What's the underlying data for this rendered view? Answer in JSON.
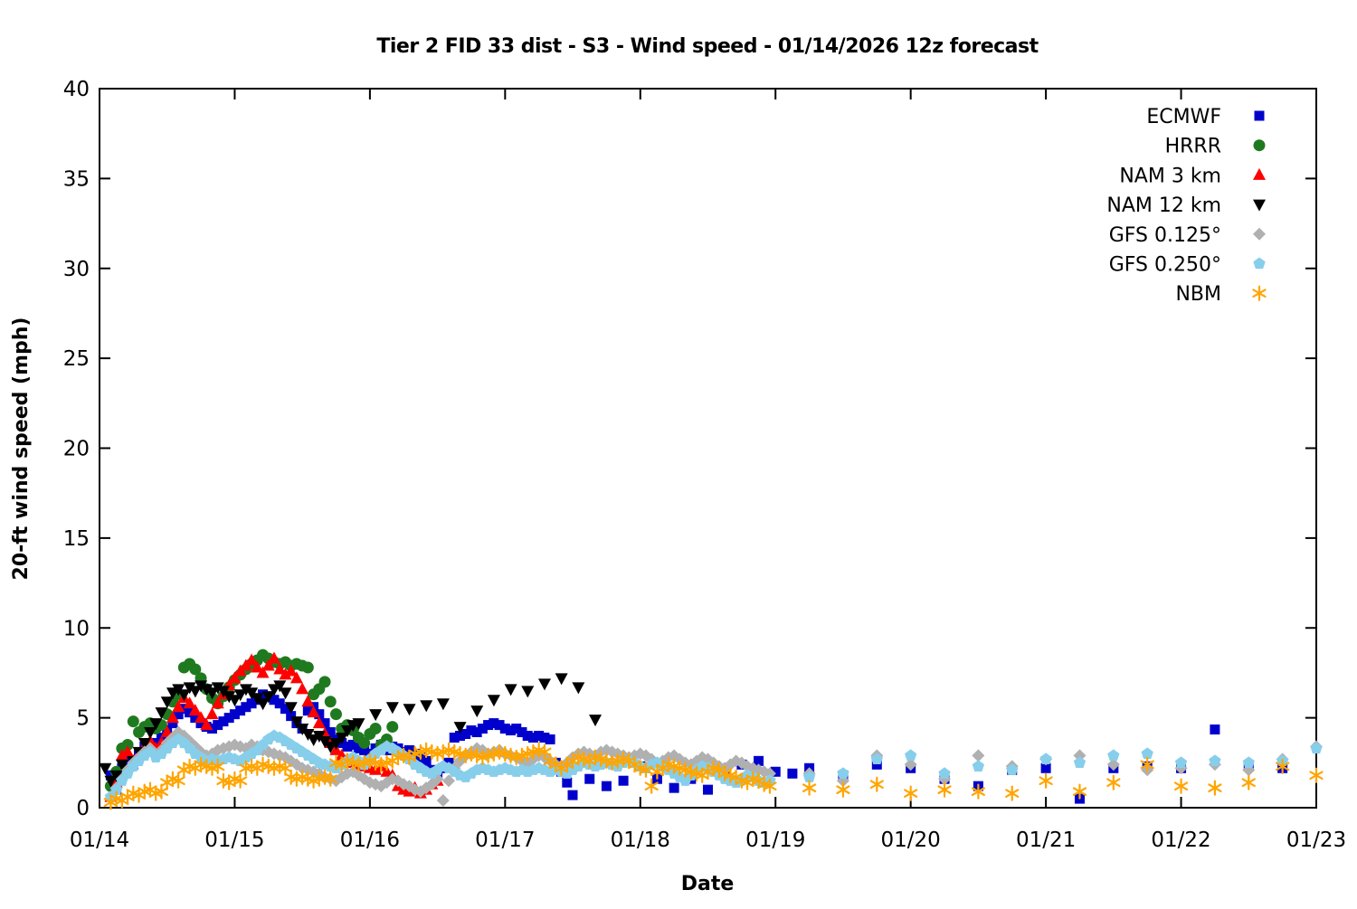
{
  "chart_data": {
    "type": "scatter",
    "title": "Tier 2 FID 33 dist - S3 - Wind speed - 01/14/2026 12z forecast",
    "xlabel": "Date",
    "ylabel": "20-ft wind speed (mph)",
    "x_unit": "days since 01/14 00:00",
    "xlim": [
      0,
      9
    ],
    "ylim": [
      0,
      40
    ],
    "grid": false,
    "legend_position": "top-right-inside",
    "x_ticks": [
      {
        "t": 0,
        "label": "01/14"
      },
      {
        "t": 1,
        "label": "01/15"
      },
      {
        "t": 2,
        "label": "01/16"
      },
      {
        "t": 3,
        "label": "01/17"
      },
      {
        "t": 4,
        "label": "01/18"
      },
      {
        "t": 5,
        "label": "01/19"
      },
      {
        "t": 6,
        "label": "01/20"
      },
      {
        "t": 7,
        "label": "01/21"
      },
      {
        "t": 8,
        "label": "01/22"
      },
      {
        "t": 9,
        "label": "01/23"
      }
    ],
    "y_ticks": [
      0,
      5,
      10,
      15,
      20,
      25,
      30,
      35,
      40
    ],
    "series": [
      {
        "name": "ECMWF",
        "marker": "square",
        "color": "#0000cc",
        "segments": [
          {
            "t0": 0.083,
            "dt": 0.041667,
            "values": [
              1.8,
              1.0,
              2.2,
              2.6,
              2.4,
              3.0,
              3.4,
              3.2,
              3.6,
              3.9,
              4.3,
              4.7,
              5.2,
              5.5,
              5.3,
              5.0,
              4.7,
              4.5,
              4.4,
              4.6,
              4.8,
              5.0,
              5.2,
              5.4,
              5.6,
              5.8,
              6.0,
              6.3,
              6.2,
              6.0,
              5.8,
              5.5,
              5.1,
              4.7,
              4.4,
              5.4,
              5.6,
              5.2,
              4.7,
              4.2,
              3.8,
              3.6,
              3.4,
              3.5,
              3.3,
              3.2,
              3.0,
              3.3,
              3.5,
              3.2,
              3.4,
              3.3,
              3.1,
              3.2,
              3.0,
              2.8,
              2.6,
              2.1,
              1.9,
              2.2,
              2.5,
              3.9,
              4.0,
              4.1,
              4.3,
              4.2,
              4.4,
              4.6,
              4.7,
              4.6,
              4.4,
              4.3,
              4.4,
              4.2,
              4.0,
              3.9,
              4.0,
              3.9,
              3.8,
              2.5,
              2.0,
              1.4,
              0.7
            ]
          },
          {
            "t0": 3.625,
            "dt": 0.125,
            "values": [
              1.6,
              1.2,
              1.5,
              2.3,
              1.6,
              1.1,
              1.6,
              1.0,
              2.1,
              2.4,
              2.6,
              2.0,
              1.9,
              2.2
            ]
          },
          {
            "t0": 5.5,
            "dt": 0.25,
            "values": [
              1.8,
              2.4,
              2.2,
              1.6,
              1.2,
              2.1,
              2.2,
              0.5,
              2.2,
              2.3,
              2.2,
              4.35,
              2.3,
              2.2
            ]
          }
        ]
      },
      {
        "name": "HRRR",
        "marker": "circle",
        "color": "#1f7a1f",
        "segments": [
          {
            "t0": 0.083,
            "dt": 0.041667,
            "values": [
              1.2,
              2.0,
              3.3,
              3.5,
              4.8,
              4.2,
              4.5,
              4.7,
              4.4,
              4.6,
              5.2,
              5.9,
              6.3,
              7.8,
              8.0,
              7.7,
              7.2,
              6.6,
              6.1,
              5.8,
              6.2,
              6.7,
              7.1,
              7.4,
              7.7,
              8.0,
              8.2,
              8.5,
              8.3,
              8.1,
              8.0,
              8.1,
              7.9,
              8.0,
              7.9,
              7.8,
              6.3,
              6.6,
              7.0,
              5.9,
              5.2,
              4.4,
              4.6,
              4.3,
              3.9,
              3.6,
              4.1,
              4.4,
              3.5,
              3.8,
              4.5
            ]
          }
        ]
      },
      {
        "name": "NAM 3 km",
        "marker": "triangle-up",
        "color": "#ff0000",
        "segments": [
          {
            "t0": 0.083,
            "dt": 0.041667,
            "values": [
              0.6,
              1.4,
              2.9,
              3.1,
              2.6,
              3.0,
              3.4,
              3.7,
              3.3,
              3.6,
              4.2,
              5.0,
              5.6,
              6.1,
              5.8,
              5.4,
              5.0,
              4.6,
              5.2,
              5.8,
              6.3,
              6.8,
              7.2,
              7.6,
              7.9,
              8.2,
              7.8,
              7.5,
              7.9,
              8.3,
              7.7,
              7.4,
              7.6,
              7.2,
              6.6,
              5.9,
              5.3,
              4.7,
              4.1,
              3.6,
              3.2,
              2.9,
              2.7,
              2.5,
              2.3,
              2.4,
              2.2,
              2.1,
              2.3,
              2.0,
              1.8,
              1.2,
              1.0,
              0.9,
              1.1,
              0.8,
              1.0,
              1.3,
              1.5
            ]
          }
        ]
      },
      {
        "name": "NAM 12 km",
        "marker": "triangle-down",
        "color": "#000000",
        "segments": [
          {
            "t0": 0.042,
            "dt": 0.041667,
            "values": [
              2.2,
              1.5,
              1.8,
              2.4,
              2.1,
              2.6,
              3.1,
              3.6,
              4.2,
              4.7,
              5.3,
              5.9,
              6.4,
              6.6,
              6.3,
              6.7,
              6.5,
              6.8,
              6.6,
              6.4,
              6.7,
              6.5,
              6.2,
              6.0,
              6.3,
              6.6,
              6.4,
              6.1,
              5.8,
              6.2,
              6.6,
              6.8,
              6.4,
              5.6,
              4.8,
              4.4,
              4.1,
              3.8,
              4.0,
              3.7,
              3.4,
              3.6,
              3.9,
              4.3,
              4.6
            ]
          },
          {
            "t0": 1.917,
            "dt": 0.125,
            "values": [
              4.7,
              5.2,
              5.6,
              5.5,
              5.7,
              5.8,
              4.5,
              5.4,
              6.0,
              6.6,
              6.5,
              6.9,
              7.2,
              6.7,
              4.9
            ]
          }
        ]
      },
      {
        "name": "GFS 0.125°",
        "marker": "diamond",
        "color": "#b0b0b0",
        "segments": [
          {
            "t0": 0.083,
            "dt": 0.041667,
            "values": [
              0.5,
              1.1,
              1.6,
              2.1,
              2.5,
              2.8,
              3.1,
              3.3,
              3.0,
              3.2,
              3.6,
              3.9,
              4.2,
              4.0,
              3.7,
              3.4,
              3.1,
              2.9,
              3.0,
              3.2,
              3.3,
              3.4,
              3.5,
              3.4,
              3.3,
              3.5,
              3.4,
              3.2,
              3.1,
              3.0,
              2.9,
              2.8,
              2.6,
              2.4,
              2.2,
              2.1,
              2.0,
              1.9,
              1.7,
              1.6,
              1.5,
              1.7,
              1.9,
              2.0,
              1.8,
              1.6,
              1.4,
              1.3,
              1.2,
              1.4,
              1.6,
              1.5,
              1.3,
              1.2,
              1.0,
              0.9,
              1.1,
              1.3,
              1.6,
              0.4,
              1.5,
              2.2,
              2.6,
              2.9,
              3.1,
              3.3,
              3.2,
              3.0,
              3.1,
              3.2,
              3.0,
              2.9,
              2.8,
              2.6,
              2.5,
              2.7,
              2.9,
              2.8,
              2.6,
              2.4,
              2.2,
              2.5,
              2.8,
              3.0,
              3.1,
              3.0,
              2.9,
              3.1,
              3.2,
              3.1,
              3.0,
              2.9,
              2.8,
              2.9,
              3.0,
              2.9,
              2.7,
              2.5,
              2.6,
              2.8,
              2.9,
              2.7,
              2.5,
              2.4,
              2.6,
              2.8,
              2.7,
              2.5,
              2.3,
              2.2,
              2.4,
              2.6,
              2.5,
              2.3,
              2.2,
              2.1,
              2.0,
              1.9
            ]
          },
          {
            "t0": 5.25,
            "dt": 0.25,
            "values": [
              1.9,
              1.5,
              2.9,
              2.4,
              1.6,
              2.9,
              2.3,
              2.7,
              2.9,
              2.4,
              2.1,
              2.2,
              2.4,
              2.1,
              2.7,
              3.4
            ]
          }
        ]
      },
      {
        "name": "GFS 0.250°",
        "marker": "pentagon",
        "color": "#87ceeb",
        "segments": [
          {
            "t0": 0.083,
            "dt": 0.041667,
            "values": [
              0.6,
              1.0,
              1.5,
              1.9,
              2.3,
              2.6,
              2.9,
              3.1,
              2.8,
              3.0,
              3.3,
              3.6,
              3.8,
              3.6,
              3.3,
              3.0,
              2.8,
              2.6,
              2.7,
              2.6,
              2.7,
              2.8,
              2.7,
              2.6,
              2.8,
              3.0,
              3.2,
              3.5,
              3.8,
              4.0,
              3.9,
              3.7,
              3.5,
              3.3,
              3.1,
              2.9,
              2.7,
              2.5,
              2.4,
              2.3,
              2.2,
              2.4,
              2.6,
              2.8,
              2.6,
              2.4,
              2.7,
              3.0,
              3.2,
              3.4,
              3.3,
              3.1,
              2.9,
              2.7,
              2.4,
              2.2,
              2.0,
              1.9,
              2.1,
              2.3,
              2.2,
              2.0,
              1.8,
              1.7,
              1.9,
              2.1,
              2.2,
              2.1,
              2.0,
              2.1,
              2.2,
              2.1,
              2.0,
              2.1,
              2.0,
              2.1,
              2.2,
              2.1,
              2.0,
              2.1,
              2.0,
              1.9,
              2.1,
              2.3,
              2.5,
              2.4,
              2.3,
              2.4,
              2.5,
              2.4,
              2.3,
              2.5,
              2.6,
              2.5,
              2.3,
              2.2,
              2.4,
              2.5,
              2.3,
              2.1,
              1.9,
              1.7,
              1.5,
              1.8,
              2.1,
              2.3,
              2.2,
              2.0,
              1.8,
              1.6,
              1.5,
              1.4,
              1.6,
              1.8,
              1.7,
              1.5,
              1.4,
              1.5
            ]
          },
          {
            "t0": 5.25,
            "dt": 0.25,
            "values": [
              1.7,
              1.9,
              2.7,
              2.9,
              1.9,
              2.3,
              2.1,
              2.7,
              2.5,
              2.9,
              3.0,
              2.5,
              2.6,
              2.5,
              2.6,
              3.3
            ]
          }
        ]
      },
      {
        "name": "NBM",
        "marker": "asterisk",
        "color": "#ffa500",
        "segments": [
          {
            "t0": 0.083,
            "dt": 0.041667,
            "values": [
              0.3,
              0.5,
              0.4,
              0.6,
              0.8,
              0.7,
              0.9,
              1.0,
              0.8,
              0.9,
              1.4,
              1.6,
              1.5,
              2.1,
              2.3,
              2.2,
              2.4,
              2.3,
              2.2,
              2.3,
              1.5,
              1.4,
              1.6,
              1.5,
              2.2,
              2.3,
              2.2,
              2.4,
              2.3,
              2.2,
              2.3,
              2.2,
              1.7,
              1.6,
              1.7,
              1.6,
              1.5,
              1.6,
              1.7,
              1.6,
              2.5,
              2.4,
              2.6,
              2.5,
              2.4,
              2.5,
              2.6,
              2.5,
              2.4,
              2.5,
              2.6,
              2.8,
              2.9,
              2.8,
              3.0,
              3.1,
              3.2,
              3.1,
              3.0,
              3.1,
              3.2,
              3.1,
              3.0,
              2.9,
              3.0,
              2.9,
              2.8,
              2.9,
              3.0,
              3.1,
              3.0,
              2.9,
              2.8,
              2.9,
              3.0,
              3.1,
              3.2,
              3.1,
              2.6,
              2.4,
              2.2,
              2.4,
              2.6,
              2.8,
              2.7,
              2.6,
              2.8,
              2.7,
              2.6,
              2.5,
              2.6,
              2.7,
              2.6,
              2.4,
              2.2,
              2.1,
              1.2,
              2.0,
              2.2,
              2.4,
              2.3,
              2.2,
              2.1,
              2.0,
              1.9,
              1.8,
              2.0,
              2.2,
              2.1,
              1.9,
              1.8,
              1.7,
              1.5,
              1.4,
              1.6,
              1.5,
              1.3,
              1.2
            ]
          },
          {
            "t0": 5.25,
            "dt": 0.25,
            "values": [
              1.1,
              1.0,
              1.3,
              0.8,
              1.0,
              0.9,
              0.8,
              1.5,
              0.9,
              1.4,
              2.4,
              1.2,
              1.1,
              1.4,
              2.3,
              1.8
            ]
          }
        ]
      }
    ]
  }
}
